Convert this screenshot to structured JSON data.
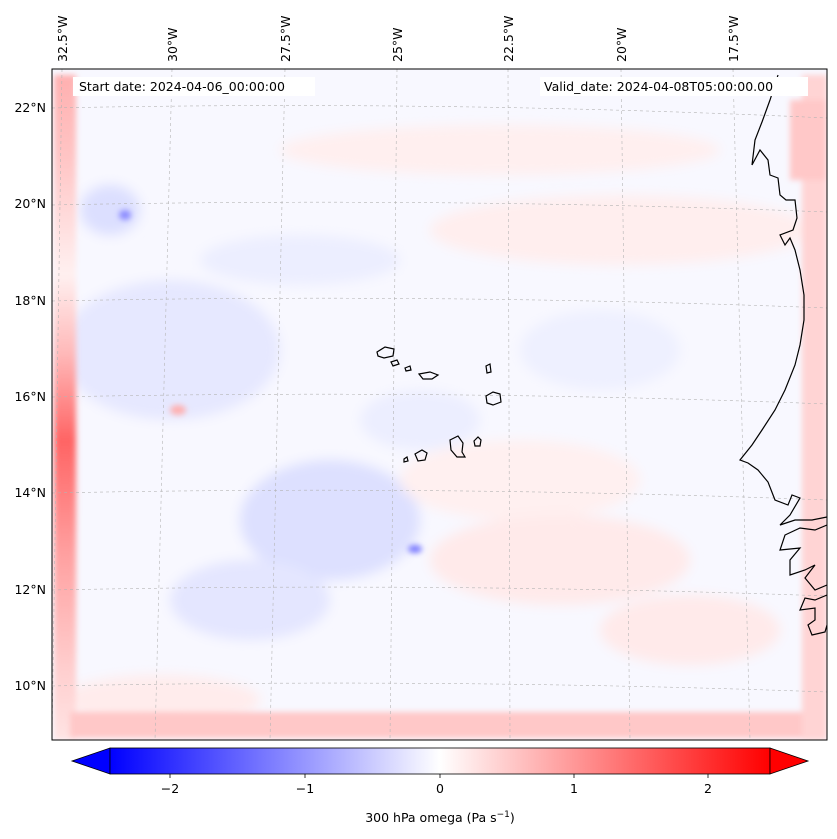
{
  "map": {
    "start_date": "Start date: 2024-04-06_00:00:00",
    "valid_date": "Valid_date: 2024-04-08T05:00:00.00",
    "lon_labels": [
      "32.5°W",
      "30°W",
      "27.5°W",
      "25°W",
      "22.5°W",
      "20°W",
      "17.5°W"
    ],
    "lat_labels": [
      "22°N",
      "20°N",
      "18°N",
      "16°N",
      "14°N",
      "12°N",
      "10°N"
    ],
    "field": "300 hPa omega",
    "colors": {
      "negative": "#0000ff",
      "positive": "#ff0000",
      "neutral": "#ffffff",
      "coast": "#000000"
    }
  },
  "colorbar": {
    "ticks": [
      "−2",
      "−1",
      "0",
      "1",
      "2"
    ],
    "label_main": "300 hPa omega (Pa s",
    "label_sup": "−1",
    "label_close": ")",
    "range": [
      -2.6,
      2.6
    ]
  }
}
